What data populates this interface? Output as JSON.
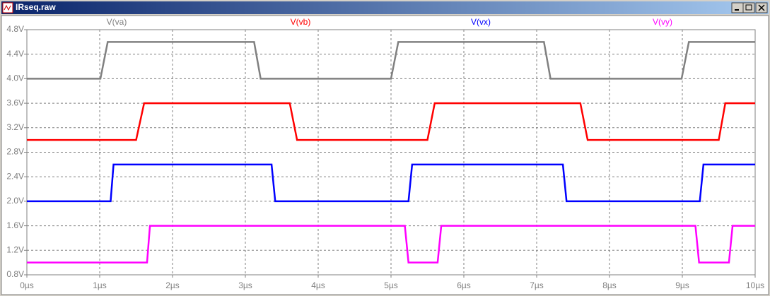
{
  "window": {
    "title": "IRseq.raw"
  },
  "chart_data": {
    "type": "line",
    "grid": true,
    "xlim": [
      0,
      10
    ],
    "ylim": [
      0.8,
      4.8
    ],
    "xticks": [
      {
        "value": 0,
        "label": "0µs"
      },
      {
        "value": 1,
        "label": "1µs"
      },
      {
        "value": 2,
        "label": "2µs"
      },
      {
        "value": 3,
        "label": "3µs"
      },
      {
        "value": 4,
        "label": "4µs"
      },
      {
        "value": 5,
        "label": "5µs"
      },
      {
        "value": 6,
        "label": "6µs"
      },
      {
        "value": 7,
        "label": "7µs"
      },
      {
        "value": 8,
        "label": "8µs"
      },
      {
        "value": 9,
        "label": "9µs"
      },
      {
        "value": 10,
        "label": "10µs"
      }
    ],
    "yticks": [
      {
        "value": 0.8,
        "label": "0.8V"
      },
      {
        "value": 1.2,
        "label": "1.2V"
      },
      {
        "value": 1.6,
        "label": "1.6V"
      },
      {
        "value": 2.0,
        "label": "2.0V"
      },
      {
        "value": 2.4,
        "label": "2.4V"
      },
      {
        "value": 2.8,
        "label": "2.8V"
      },
      {
        "value": 3.2,
        "label": "3.2V"
      },
      {
        "value": 3.6,
        "label": "3.6V"
      },
      {
        "value": 4.0,
        "label": "4.0V"
      },
      {
        "value": 4.4,
        "label": "4.4V"
      },
      {
        "value": 4.8,
        "label": "4.8V"
      }
    ],
    "series": [
      {
        "name": "V(va)",
        "color": "#808080",
        "x": [
          0,
          1.01,
          1.11,
          3.12,
          3.21,
          5.0,
          5.1,
          7.1,
          7.19,
          8.99,
          9.09,
          10
        ],
        "values": [
          4.0,
          4.0,
          4.6,
          4.6,
          4.0,
          4.0,
          4.6,
          4.6,
          4.0,
          4.0,
          4.6,
          4.6
        ]
      },
      {
        "name": "V(vb)",
        "color": "#ff0000",
        "x": [
          0,
          1.5,
          1.61,
          3.61,
          3.71,
          5.5,
          5.6,
          7.6,
          7.7,
          9.5,
          9.59,
          10
        ],
        "values": [
          3.0,
          3.0,
          3.6,
          3.6,
          3.0,
          3.0,
          3.6,
          3.6,
          3.0,
          3.0,
          3.6,
          3.6
        ]
      },
      {
        "name": "V(vx)",
        "color": "#0000ff",
        "x": [
          0,
          1.15,
          1.19,
          3.36,
          3.41,
          5.24,
          5.29,
          7.36,
          7.41,
          9.24,
          9.29,
          10
        ],
        "values": [
          2.0,
          2.0,
          2.6,
          2.6,
          2.0,
          2.0,
          2.6,
          2.6,
          2.0,
          2.0,
          2.6,
          2.6
        ]
      },
      {
        "name": "V(vy)",
        "color": "#ff00ff",
        "x": [
          0,
          1.65,
          1.69,
          5.19,
          5.24,
          5.64,
          5.69,
          9.18,
          9.23,
          9.64,
          9.69,
          10
        ],
        "values": [
          1.0,
          1.0,
          1.6,
          1.6,
          1.0,
          1.0,
          1.6,
          1.6,
          1.0,
          1.0,
          1.6,
          1.6
        ]
      }
    ]
  }
}
